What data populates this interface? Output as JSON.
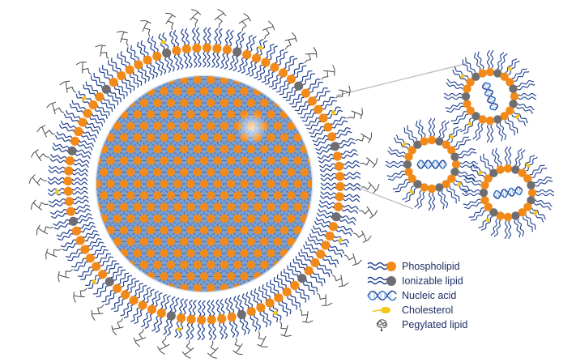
{
  "colors": {
    "phospholipid_head": "#f28a1a",
    "ionizable_head": "#6e6e72",
    "lipid_tail": "#1f3f8f",
    "nucleic_acid": "#2d6ec4",
    "cholesterol": "#f5c518",
    "peg": "#4a4a4a",
    "core_fill": "#6f95c8",
    "zoom_line": "#b7b7b7"
  },
  "legend": [
    {
      "icon": "phospholipid-icon",
      "label": "Phospholipid"
    },
    {
      "icon": "ionizable-lipid-icon",
      "label": "Ionizable lipid"
    },
    {
      "icon": "nucleic-acid-icon",
      "label": "Nucleic acid"
    },
    {
      "icon": "cholesterol-icon",
      "label": "Cholesterol"
    },
    {
      "icon": "pegylated-lipid-icon",
      "label": "Pegylated lipid"
    }
  ]
}
